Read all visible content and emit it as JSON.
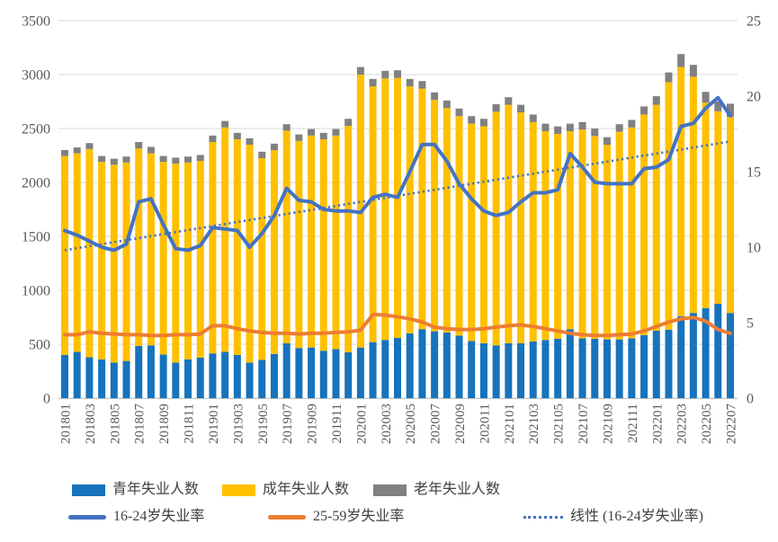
{
  "chart_data": {
    "type": "combo-stacked-bar-line",
    "title": "",
    "months": [
      "201801",
      "201802",
      "201803",
      "201804",
      "201805",
      "201806",
      "201807",
      "201808",
      "201809",
      "201810",
      "201811",
      "201812",
      "201901",
      "201902",
      "201903",
      "201904",
      "201905",
      "201906",
      "201907",
      "201908",
      "201909",
      "201910",
      "201911",
      "201912",
      "202001",
      "202002",
      "202003",
      "202004",
      "202005",
      "202006",
      "202007",
      "202008",
      "202009",
      "202010",
      "202011",
      "202012",
      "202101",
      "202102",
      "202103",
      "202104",
      "202105",
      "202106",
      "202107",
      "202108",
      "202109",
      "202110",
      "202111",
      "202112",
      "202201",
      "202202",
      "202203",
      "202204",
      "202205",
      "202206",
      "202207"
    ],
    "x_tick_labels": [
      "201801",
      "201803",
      "201805",
      "201807",
      "201809",
      "201811",
      "201901",
      "201903",
      "201905",
      "201907",
      "201909",
      "201911",
      "202001",
      "202003",
      "202005",
      "202007",
      "202009",
      "202011",
      "202101",
      "202103",
      "202105",
      "202107",
      "202109",
      "202111",
      "202201",
      "202203",
      "202205",
      "202207"
    ],
    "left_axis": {
      "min": 0,
      "max": 3500,
      "step": 500,
      "tick_labels": [
        "0",
        "500",
        "1000",
        "1500",
        "2000",
        "2500",
        "3000",
        "3500"
      ]
    },
    "right_axis": {
      "min": 0,
      "max": 25,
      "step": 5,
      "tick_labels": [
        "0",
        "5",
        "10",
        "15",
        "20",
        "25"
      ]
    },
    "grid": true,
    "legend_position": "bottom",
    "series": [
      {
        "name": "青年失业人数",
        "type": "bar",
        "stack": true,
        "axis": "left",
        "color": "#1673BC",
        "values": [
          400,
          430,
          380,
          360,
          330,
          345,
          485,
          490,
          405,
          330,
          360,
          375,
          415,
          430,
          400,
          330,
          355,
          410,
          510,
          465,
          470,
          440,
          455,
          425,
          470,
          520,
          540,
          560,
          600,
          640,
          620,
          610,
          580,
          530,
          510,
          490,
          510,
          510,
          525,
          540,
          550,
          640,
          555,
          550,
          545,
          545,
          555,
          585,
          625,
          635,
          760,
          790,
          835,
          875,
          790
        ]
      },
      {
        "name": "成年失业人数",
        "type": "bar",
        "stack": true,
        "axis": "left",
        "color": "#FFC000",
        "values": [
          1845,
          1840,
          1930,
          1830,
          1835,
          1840,
          1830,
          1780,
          1785,
          1845,
          1825,
          1825,
          1960,
          2080,
          2000,
          2020,
          1870,
          1890,
          1970,
          1920,
          1965,
          1960,
          1980,
          2100,
          2530,
          2370,
          2425,
          2410,
          2290,
          2230,
          2145,
          2080,
          2035,
          2015,
          2010,
          2165,
          2210,
          2140,
          2035,
          1935,
          1900,
          1835,
          1935,
          1880,
          1805,
          1925,
          1955,
          2045,
          2095,
          2295,
          2310,
          2190,
          1905,
          1785,
          1820
        ]
      },
      {
        "name": "老年失业人数",
        "type": "bar",
        "stack": true,
        "axis": "left",
        "color": "#808080",
        "values": [
          55,
          55,
          55,
          55,
          55,
          55,
          60,
          60,
          55,
          55,
          55,
          55,
          60,
          60,
          60,
          60,
          60,
          60,
          60,
          60,
          60,
          60,
          60,
          65,
          70,
          70,
          70,
          70,
          70,
          70,
          70,
          70,
          70,
          70,
          70,
          70,
          70,
          70,
          70,
          70,
          70,
          70,
          70,
          70,
          70,
          70,
          70,
          75,
          80,
          90,
          120,
          110,
          100,
          90,
          120
        ]
      },
      {
        "name": "16-24岁失业率",
        "type": "line",
        "axis": "right",
        "color": "#4472C4",
        "values": [
          11.1,
          10.8,
          10.4,
          10.0,
          9.8,
          10.2,
          13.0,
          13.2,
          11.5,
          9.9,
          9.8,
          10.1,
          11.3,
          11.2,
          11.1,
          10.0,
          10.9,
          12.1,
          13.9,
          13.1,
          13.0,
          12.5,
          12.4,
          12.4,
          12.3,
          13.3,
          13.5,
          13.3,
          15.0,
          16.8,
          16.8,
          15.7,
          14.2,
          13.2,
          12.4,
          12.1,
          12.3,
          13.0,
          13.6,
          13.6,
          13.8,
          16.2,
          15.3,
          14.3,
          14.2,
          14.2,
          14.2,
          15.2,
          15.3,
          15.8,
          18.0,
          18.2,
          19.2,
          19.9,
          18.7
        ]
      },
      {
        "name": "25-59岁失业率",
        "type": "line",
        "axis": "right",
        "color": "#ED7D31",
        "values": [
          4.2,
          4.2,
          4.4,
          4.3,
          4.25,
          4.2,
          4.2,
          4.15,
          4.15,
          4.2,
          4.2,
          4.25,
          4.8,
          4.8,
          4.6,
          4.45,
          4.35,
          4.3,
          4.3,
          4.25,
          4.3,
          4.3,
          4.35,
          4.4,
          4.5,
          5.55,
          5.5,
          5.4,
          5.25,
          5.05,
          4.7,
          4.6,
          4.55,
          4.55,
          4.6,
          4.7,
          4.8,
          4.85,
          4.75,
          4.6,
          4.45,
          4.3,
          4.2,
          4.15,
          4.15,
          4.2,
          4.25,
          4.45,
          4.75,
          5.05,
          5.25,
          5.35,
          5.1,
          4.55,
          4.3
        ]
      },
      {
        "name": "线性 (16-24岁失业率)",
        "type": "trend",
        "axis": "right",
        "color": "#4472C4",
        "start": 9.8,
        "end": 17.0
      }
    ],
    "colors": {
      "gridline": "#D9D9D9",
      "axis_line": "#C6C6C6",
      "tick_text": "#595959",
      "legend_text": "#404040"
    }
  }
}
